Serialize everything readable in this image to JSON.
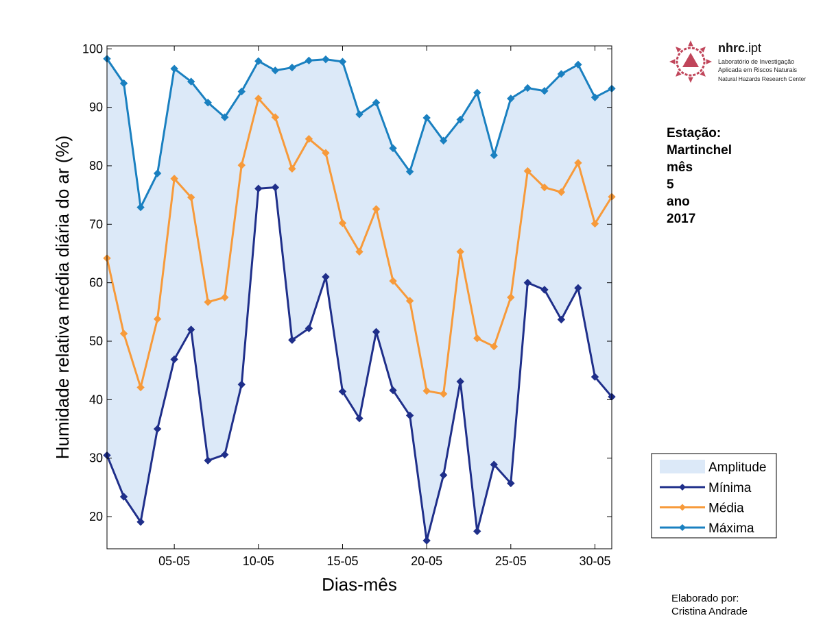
{
  "chart_data": {
    "type": "line",
    "xlabel": "Dias-mês",
    "ylabel": "Humidade relativa média diária do ar (%)",
    "x": [
      1,
      2,
      3,
      4,
      5,
      6,
      7,
      8,
      9,
      10,
      11,
      12,
      13,
      14,
      15,
      16,
      17,
      18,
      19,
      20,
      21,
      22,
      23,
      24,
      25,
      26,
      27,
      28,
      29,
      30,
      31
    ],
    "xlim": [
      1,
      31
    ],
    "ylim": [
      14.5,
      100.5
    ],
    "xticks": [
      5,
      10,
      15,
      20,
      25,
      30
    ],
    "xtick_labels": [
      "05-05",
      "10-05",
      "15-05",
      "20-05",
      "25-05",
      "30-05"
    ],
    "yticks": [
      20,
      30,
      40,
      50,
      60,
      70,
      80,
      90,
      100
    ],
    "ytick_labels": [
      "20",
      "30",
      "40",
      "50",
      "60",
      "70",
      "80",
      "90",
      "100"
    ],
    "grid": false,
    "legend_position": "outside-right-bottom",
    "amplitude": {
      "name": "Amplitude",
      "color": "#dce9f8"
    },
    "series": [
      {
        "name": "Mínima",
        "color": "#1f2f8a",
        "values": [
          30.5,
          23.4,
          19.1,
          35.0,
          46.9,
          52.0,
          29.6,
          30.6,
          42.6,
          76.1,
          76.3,
          50.2,
          52.2,
          61.0,
          41.4,
          36.8,
          51.6,
          41.6,
          37.3,
          15.9,
          27.1,
          43.1,
          17.5,
          28.9,
          25.7,
          60.0,
          58.8,
          53.7,
          59.1,
          43.9,
          40.5
        ]
      },
      {
        "name": "Média",
        "color": "#f79a3a",
        "values": [
          64.2,
          51.3,
          42.1,
          53.8,
          77.8,
          74.6,
          56.7,
          57.5,
          80.1,
          91.5,
          88.3,
          79.5,
          84.6,
          82.2,
          70.2,
          65.3,
          72.6,
          60.3,
          56.9,
          41.5,
          41.0,
          65.3,
          50.5,
          49.1,
          57.5,
          79.1,
          76.3,
          75.5,
          80.5,
          70.1,
          74.7
        ]
      },
      {
        "name": "Máxima",
        "color": "#1a80c0",
        "values": [
          98.3,
          94.1,
          72.9,
          78.7,
          96.6,
          94.4,
          90.8,
          88.3,
          92.7,
          97.9,
          96.3,
          96.8,
          98.0,
          98.2,
          97.8,
          88.8,
          90.8,
          83.0,
          79.0,
          88.2,
          84.3,
          87.9,
          92.5,
          81.8,
          91.5,
          93.3,
          92.8,
          95.7,
          97.3,
          91.7,
          93.2
        ]
      }
    ]
  },
  "logo": {
    "name_bold": "nhrc",
    "name_rest": ".ipt",
    "line1": "Laboratório de Investigação",
    "line2": "Aplicada em Riscos Naturais",
    "line3": "Natural Hazards Research Center",
    "color": "#c0455a"
  },
  "info": {
    "station_label": "Estação:",
    "station": "Martinchel",
    "month_label": "mês",
    "month": "5",
    "year_label": "ano",
    "year": "2017"
  },
  "credit": {
    "label": "Elaborado por:",
    "author": "Cristina Andrade"
  }
}
